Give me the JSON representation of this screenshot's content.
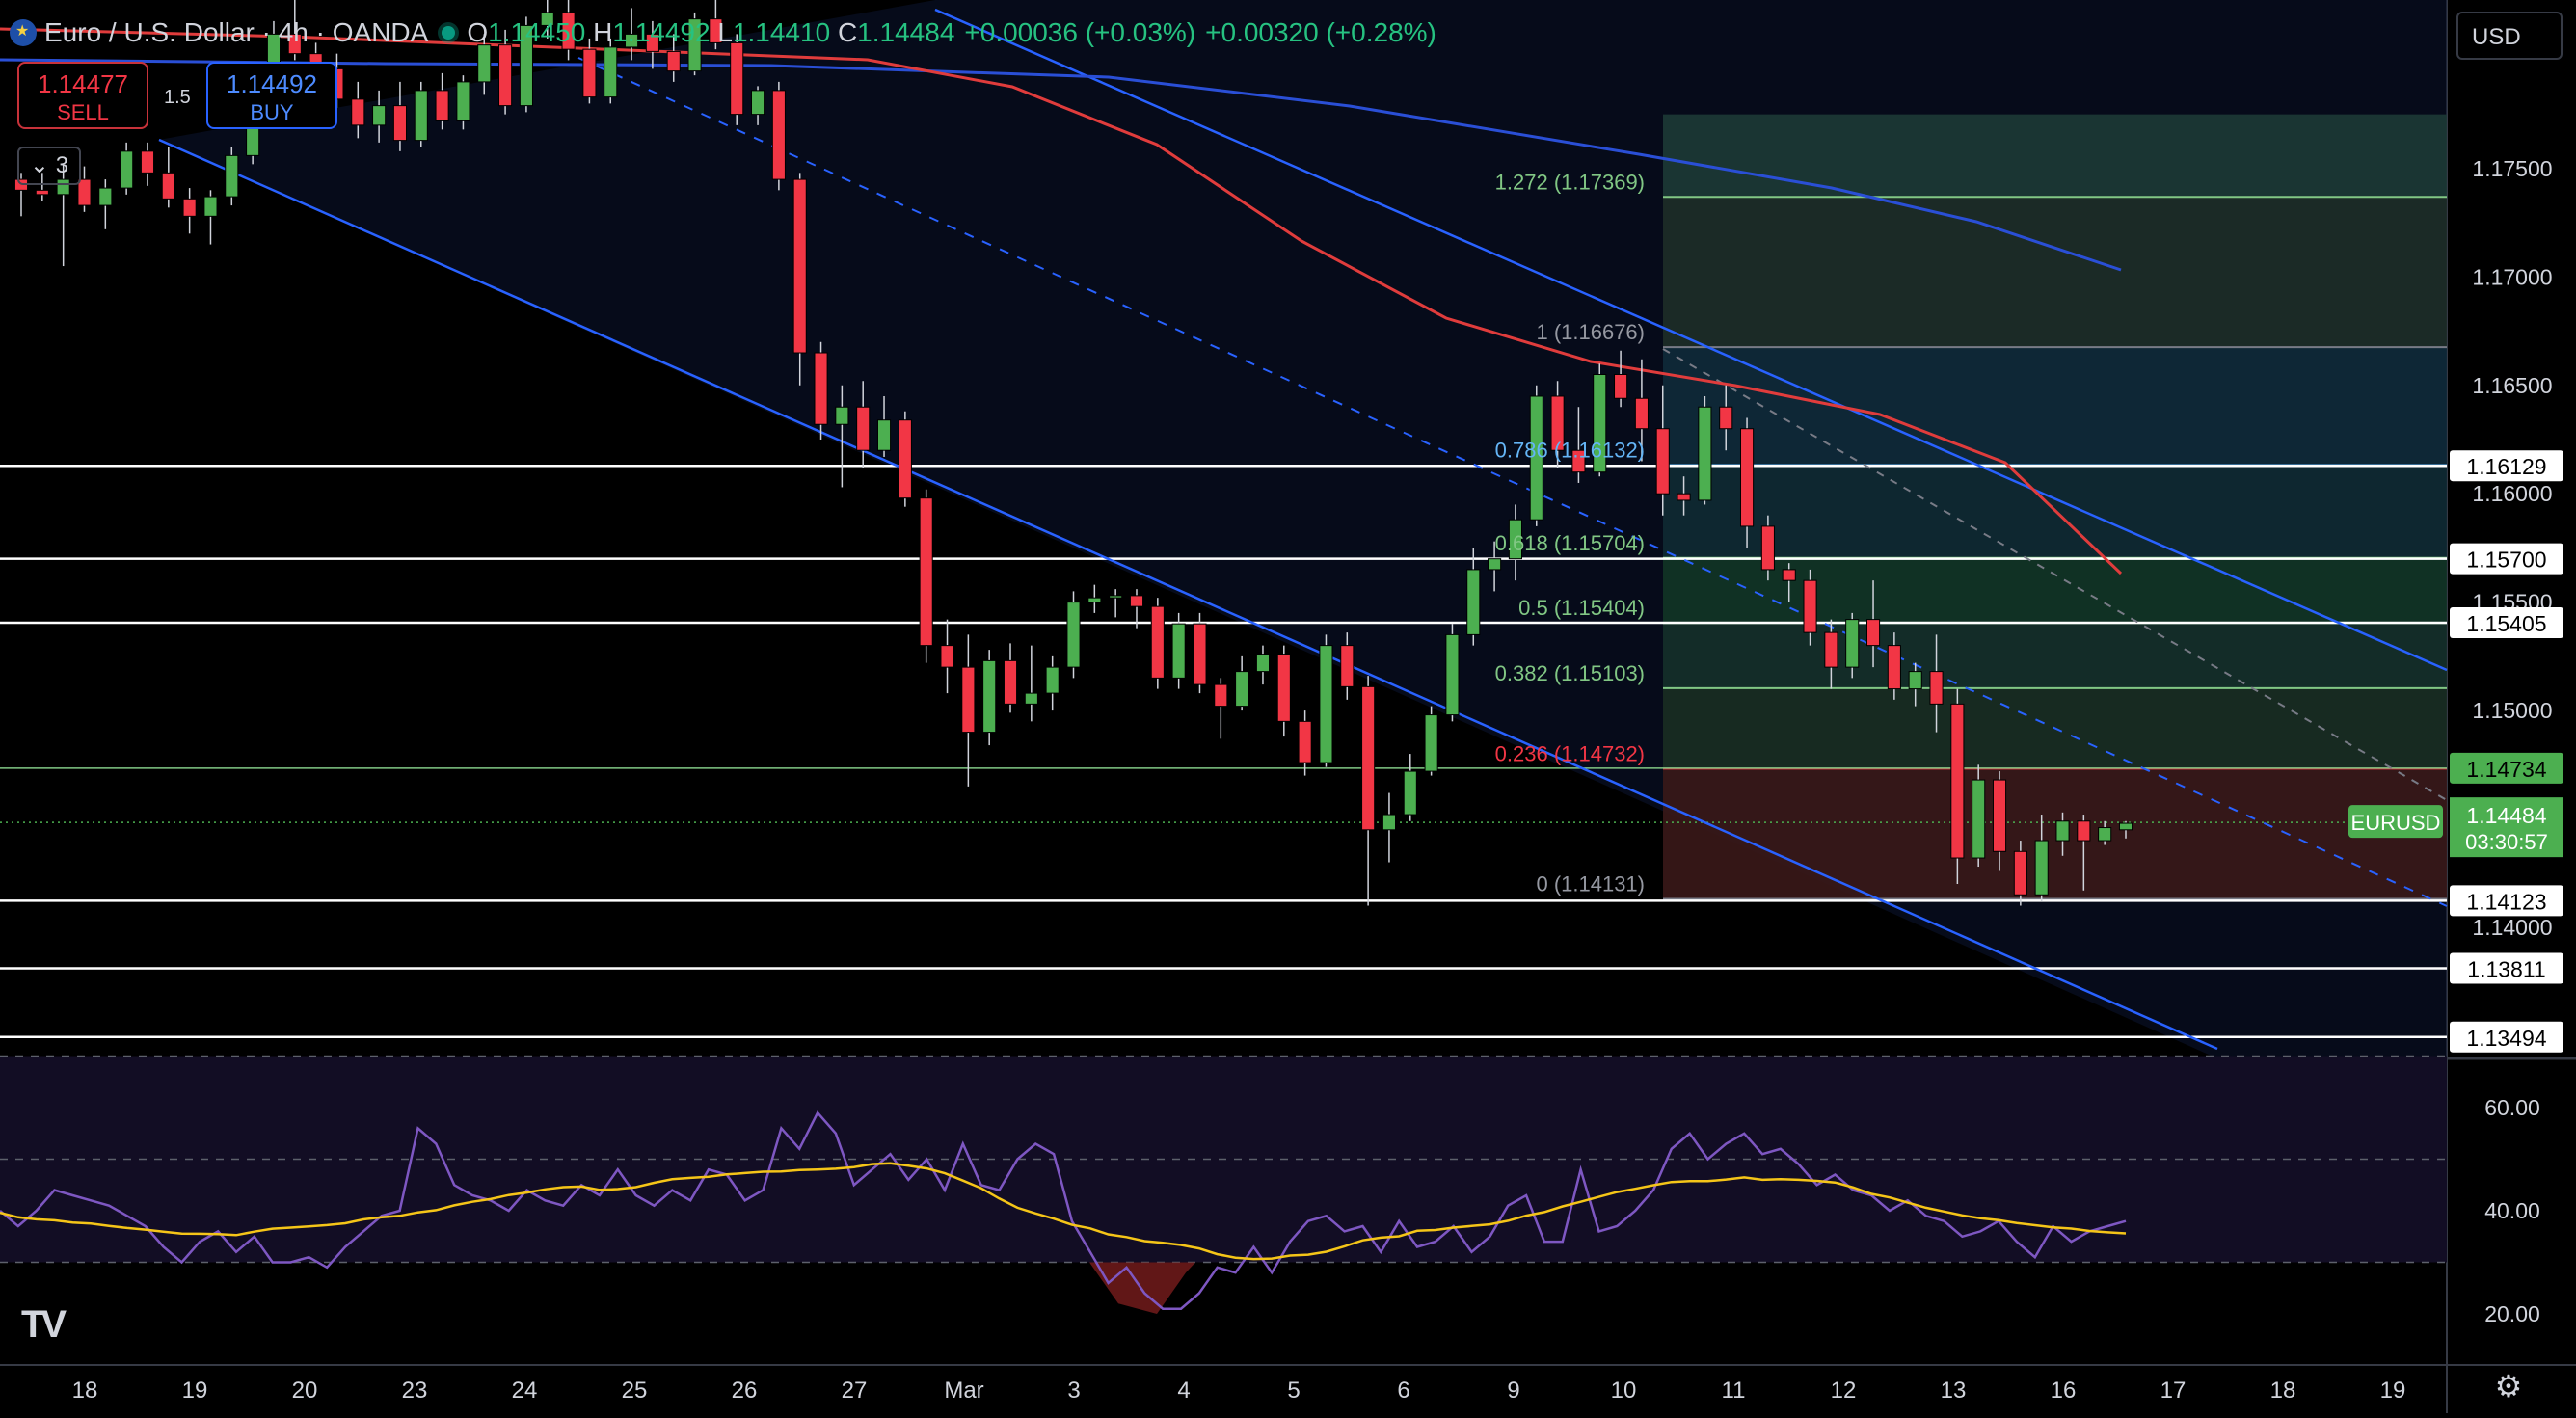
{
  "header": {
    "symbol_title": "Euro / U.S. Dollar · 4h · OANDA",
    "open": "1.14450",
    "high": "1.14492",
    "low": "1.14410",
    "close": "1.14484",
    "open_label": "O",
    "high_label": "H",
    "low_label": "L",
    "close_label": "C",
    "change": "+0.00036 (+0.03%)",
    "change2": "+0.00320 (+0.28%)",
    "market_status_icon": "market-open-dot-icon",
    "flag_icon": "eu-flag-icon"
  },
  "trade": {
    "sell_price": "1.14477",
    "sell_label": "SELL",
    "buy_price": "1.14492",
    "buy_label": "BUY",
    "spread": "1.5"
  },
  "layout_toggle": "3",
  "currency_button": "USD",
  "price_axis": {
    "ticks": [
      "1.17500",
      "1.17000",
      "1.16500",
      "1.16000",
      "1.15500",
      "1.15000",
      "1.14000"
    ],
    "line_tags": [
      "1.16129",
      "1.15700",
      "1.15405",
      "1.14734",
      "1.14123",
      "1.13811",
      "1.13494"
    ],
    "last_price_tag_symbol": "EURUSD",
    "last_price": "1.14484",
    "countdown": "03:30:57"
  },
  "rsi_axis": {
    "ticks": [
      "60.00",
      "40.00",
      "20.00"
    ]
  },
  "time_axis": {
    "labels": [
      "18",
      "19",
      "20",
      "23",
      "24",
      "25",
      "26",
      "27",
      "Mar",
      "3",
      "4",
      "5",
      "6",
      "9",
      "10",
      "11",
      "12",
      "13",
      "16",
      "17",
      "18",
      "19"
    ]
  },
  "fib_labels": [
    "1.272 (1.17369)",
    "1 (1.16676)",
    "0.786 (1.16132)",
    "0.618 (1.15704)",
    "0.5 (1.15404)",
    "0.382 (1.15103)",
    "0.236 (1.14732)",
    "0 (1.14131)"
  ],
  "logo_icon": "tradingview-logo-icon",
  "settings_icon": "gear-icon",
  "colors": {
    "up": "#4caf50",
    "down": "#f23645",
    "channel": "#2962ff",
    "ma_red": "#e03c3c",
    "ma_blue": "#2a4fd6",
    "rsi": "#7e57c2",
    "rsi_ma": "#f5c518",
    "fib_green": "#81c784",
    "fib_blue": "#64b5f6",
    "fib_red": "#f23645"
  },
  "chart_data": {
    "type": "candlestick",
    "symbol": "EURUSD",
    "timeframe": "4h",
    "candles": [
      [
        1.1745,
        1.1748,
        1.1728,
        1.174
      ],
      [
        1.174,
        1.1748,
        1.1735,
        1.1738
      ],
      [
        1.1738,
        1.1752,
        1.1705,
        1.1745
      ],
      [
        1.1745,
        1.1751,
        1.173,
        1.1733
      ],
      [
        1.1733,
        1.1745,
        1.1722,
        1.1741
      ],
      [
        1.1741,
        1.1762,
        1.1738,
        1.1758
      ],
      [
        1.1758,
        1.1762,
        1.1742,
        1.1748
      ],
      [
        1.1748,
        1.176,
        1.1732,
        1.1736
      ],
      [
        1.1736,
        1.1741,
        1.172,
        1.1728
      ],
      [
        1.1728,
        1.174,
        1.1715,
        1.1737
      ],
      [
        1.1737,
        1.176,
        1.1733,
        1.1756
      ],
      [
        1.1756,
        1.1792,
        1.1752,
        1.1788
      ],
      [
        1.1788,
        1.1818,
        1.178,
        1.1812
      ],
      [
        1.1812,
        1.1828,
        1.18,
        1.1803
      ],
      [
        1.1803,
        1.1808,
        1.1782,
        1.1796
      ],
      [
        1.1796,
        1.1803,
        1.1778,
        1.1782
      ],
      [
        1.1782,
        1.179,
        1.1764,
        1.177
      ],
      [
        1.177,
        1.1786,
        1.1762,
        1.1779
      ],
      [
        1.1779,
        1.179,
        1.1758,
        1.1763
      ],
      [
        1.1763,
        1.179,
        1.176,
        1.1786
      ],
      [
        1.1786,
        1.1794,
        1.1768,
        1.1772
      ],
      [
        1.1772,
        1.1793,
        1.1768,
        1.179
      ],
      [
        1.179,
        1.1812,
        1.1784,
        1.1807
      ],
      [
        1.1807,
        1.1814,
        1.1775,
        1.1779
      ],
      [
        1.1779,
        1.182,
        1.1776,
        1.1816
      ],
      [
        1.1816,
        1.183,
        1.181,
        1.1822
      ],
      [
        1.1822,
        1.1828,
        1.18,
        1.1805
      ],
      [
        1.1805,
        1.181,
        1.178,
        1.1783
      ],
      [
        1.1783,
        1.181,
        1.178,
        1.1806
      ],
      [
        1.1806,
        1.1824,
        1.18,
        1.1812
      ],
      [
        1.1812,
        1.1818,
        1.1796,
        1.1804
      ],
      [
        1.1804,
        1.1812,
        1.179,
        1.1795
      ],
      [
        1.1795,
        1.1822,
        1.1793,
        1.1819
      ],
      [
        1.1819,
        1.1828,
        1.1805,
        1.1808
      ],
      [
        1.1808,
        1.1812,
        1.177,
        1.1775
      ],
      [
        1.1775,
        1.1788,
        1.177,
        1.1786
      ],
      [
        1.1786,
        1.179,
        1.174,
        1.1745
      ],
      [
        1.1745,
        1.1748,
        1.165,
        1.1665
      ],
      [
        1.1665,
        1.167,
        1.1625,
        1.1632
      ],
      [
        1.1632,
        1.165,
        1.1603,
        1.164
      ],
      [
        1.164,
        1.1652,
        1.1612,
        1.162
      ],
      [
        1.162,
        1.1645,
        1.1617,
        1.1634
      ],
      [
        1.1634,
        1.1638,
        1.1594,
        1.1598
      ],
      [
        1.1598,
        1.1602,
        1.1522,
        1.153
      ],
      [
        1.153,
        1.1542,
        1.1508,
        1.152
      ],
      [
        1.152,
        1.1535,
        1.1465,
        1.149
      ],
      [
        1.149,
        1.1528,
        1.1484,
        1.1523
      ],
      [
        1.1523,
        1.1531,
        1.1499,
        1.1503
      ],
      [
        1.1503,
        1.153,
        1.1495,
        1.1508
      ],
      [
        1.1508,
        1.1525,
        1.15,
        1.152
      ],
      [
        1.152,
        1.1555,
        1.1515,
        1.155
      ],
      [
        1.155,
        1.1558,
        1.1545,
        1.1552
      ],
      [
        1.1552,
        1.1556,
        1.1543,
        1.1553
      ],
      [
        1.1553,
        1.1556,
        1.1538,
        1.1548
      ],
      [
        1.1548,
        1.1552,
        1.151,
        1.1515
      ],
      [
        1.1515,
        1.1545,
        1.151,
        1.154
      ],
      [
        1.154,
        1.1545,
        1.1508,
        1.1512
      ],
      [
        1.1512,
        1.1515,
        1.1487,
        1.1502
      ],
      [
        1.1502,
        1.1525,
        1.15,
        1.1518
      ],
      [
        1.1518,
        1.153,
        1.1512,
        1.1526
      ],
      [
        1.1526,
        1.153,
        1.1488,
        1.1495
      ],
      [
        1.1495,
        1.15,
        1.147,
        1.1476
      ],
      [
        1.1476,
        1.1535,
        1.1474,
        1.153
      ],
      [
        1.153,
        1.1536,
        1.1505,
        1.1511
      ],
      [
        1.1511,
        1.1516,
        1.141,
        1.1445
      ],
      [
        1.1445,
        1.1462,
        1.143,
        1.1452
      ],
      [
        1.1452,
        1.148,
        1.1449,
        1.1472
      ],
      [
        1.1472,
        1.1502,
        1.147,
        1.1498
      ],
      [
        1.1498,
        1.154,
        1.1495,
        1.1535
      ],
      [
        1.1535,
        1.1575,
        1.153,
        1.1565
      ],
      [
        1.1565,
        1.1578,
        1.1555,
        1.157
      ],
      [
        1.157,
        1.1595,
        1.156,
        1.1588
      ],
      [
        1.1588,
        1.165,
        1.1585,
        1.1645
      ],
      [
        1.1645,
        1.1652,
        1.1612,
        1.162
      ],
      [
        1.162,
        1.164,
        1.1605,
        1.161
      ],
      [
        1.161,
        1.166,
        1.1608,
        1.1655
      ],
      [
        1.1655,
        1.1666,
        1.164,
        1.1644
      ],
      [
        1.1644,
        1.1662,
        1.1615,
        1.163
      ],
      [
        1.163,
        1.165,
        1.159,
        1.16
      ],
      [
        1.16,
        1.1608,
        1.159,
        1.1597
      ],
      [
        1.1597,
        1.1645,
        1.1595,
        1.164
      ],
      [
        1.164,
        1.165,
        1.162,
        1.163
      ],
      [
        1.163,
        1.1635,
        1.1575,
        1.1585
      ],
      [
        1.1585,
        1.159,
        1.156,
        1.1565
      ],
      [
        1.1565,
        1.1568,
        1.155,
        1.156
      ],
      [
        1.156,
        1.1565,
        1.153,
        1.1536
      ],
      [
        1.1536,
        1.1542,
        1.151,
        1.152
      ],
      [
        1.152,
        1.1545,
        1.1515,
        1.1542
      ],
      [
        1.1542,
        1.156,
        1.152,
        1.153
      ],
      [
        1.153,
        1.1536,
        1.1505,
        1.151
      ],
      [
        1.151,
        1.1522,
        1.1502,
        1.1518
      ],
      [
        1.1518,
        1.1535,
        1.149,
        1.1503
      ],
      [
        1.1503,
        1.151,
        1.142,
        1.1432
      ],
      [
        1.1432,
        1.1475,
        1.1428,
        1.1468
      ],
      [
        1.1468,
        1.1472,
        1.1426,
        1.1435
      ],
      [
        1.1435,
        1.144,
        1.141,
        1.1415
      ],
      [
        1.1415,
        1.1452,
        1.1412,
        1.144
      ],
      [
        1.144,
        1.1453,
        1.1433,
        1.1449
      ],
      [
        1.1449,
        1.1452,
        1.1417,
        1.144
      ],
      [
        1.144,
        1.1449,
        1.1438,
        1.1446
      ],
      [
        1.1445,
        1.1449,
        1.1441,
        1.1448
      ]
    ],
    "x_labels": [
      "18",
      "19",
      "20",
      "23",
      "24",
      "25",
      "26",
      "27",
      "Mar",
      "3",
      "4",
      "5",
      "6",
      "9",
      "10",
      "11",
      "12",
      "13",
      "16",
      "17",
      "18",
      "19"
    ],
    "y_range": [
      1.133,
      1.18
    ],
    "last_price": 1.14484,
    "fibonacci": [
      {
        "level": 1.272,
        "price": 1.17369
      },
      {
        "level": 1,
        "price": 1.16676
      },
      {
        "level": 0.786,
        "price": 1.16132
      },
      {
        "level": 0.618,
        "price": 1.15704
      },
      {
        "level": 0.5,
        "price": 1.15404
      },
      {
        "level": 0.382,
        "price": 1.15103
      },
      {
        "level": 0.236,
        "price": 1.14732
      },
      {
        "level": 0,
        "price": 1.14131
      }
    ],
    "horizontal_lines": [
      1.16129,
      1.157,
      1.15405,
      1.14123,
      1.13811,
      1.13494
    ],
    "rsi": [
      40,
      37,
      40,
      44,
      43,
      42,
      41,
      39,
      37,
      33,
      30,
      34,
      36,
      32,
      35,
      30,
      30,
      31,
      29,
      33,
      36,
      39,
      40,
      56,
      53,
      45,
      43,
      42,
      40,
      44,
      42,
      41,
      45,
      43,
      48,
      43,
      41,
      44,
      42,
      48,
      47,
      42,
      44,
      56,
      52,
      59,
      55,
      45,
      48,
      51,
      46,
      50,
      44,
      53,
      45,
      44,
      50,
      53,
      51,
      38,
      32,
      26,
      29,
      24,
      21,
      21,
      24,
      29,
      28,
      33,
      28,
      34,
      38,
      39,
      36,
      37,
      32,
      38,
      33,
      34,
      37,
      32,
      35,
      41,
      43,
      34,
      34,
      48,
      36,
      37,
      40,
      44,
      52,
      55,
      50,
      53,
      55,
      51,
      52,
      49,
      45,
      47,
      44,
      43,
      40,
      42,
      39,
      38,
      35,
      36,
      38,
      34,
      31,
      37,
      34,
      36,
      37,
      38
    ],
    "rsi_levels": [
      70,
      50,
      30
    ],
    "rsi_range": [
      20,
      70
    ]
  }
}
